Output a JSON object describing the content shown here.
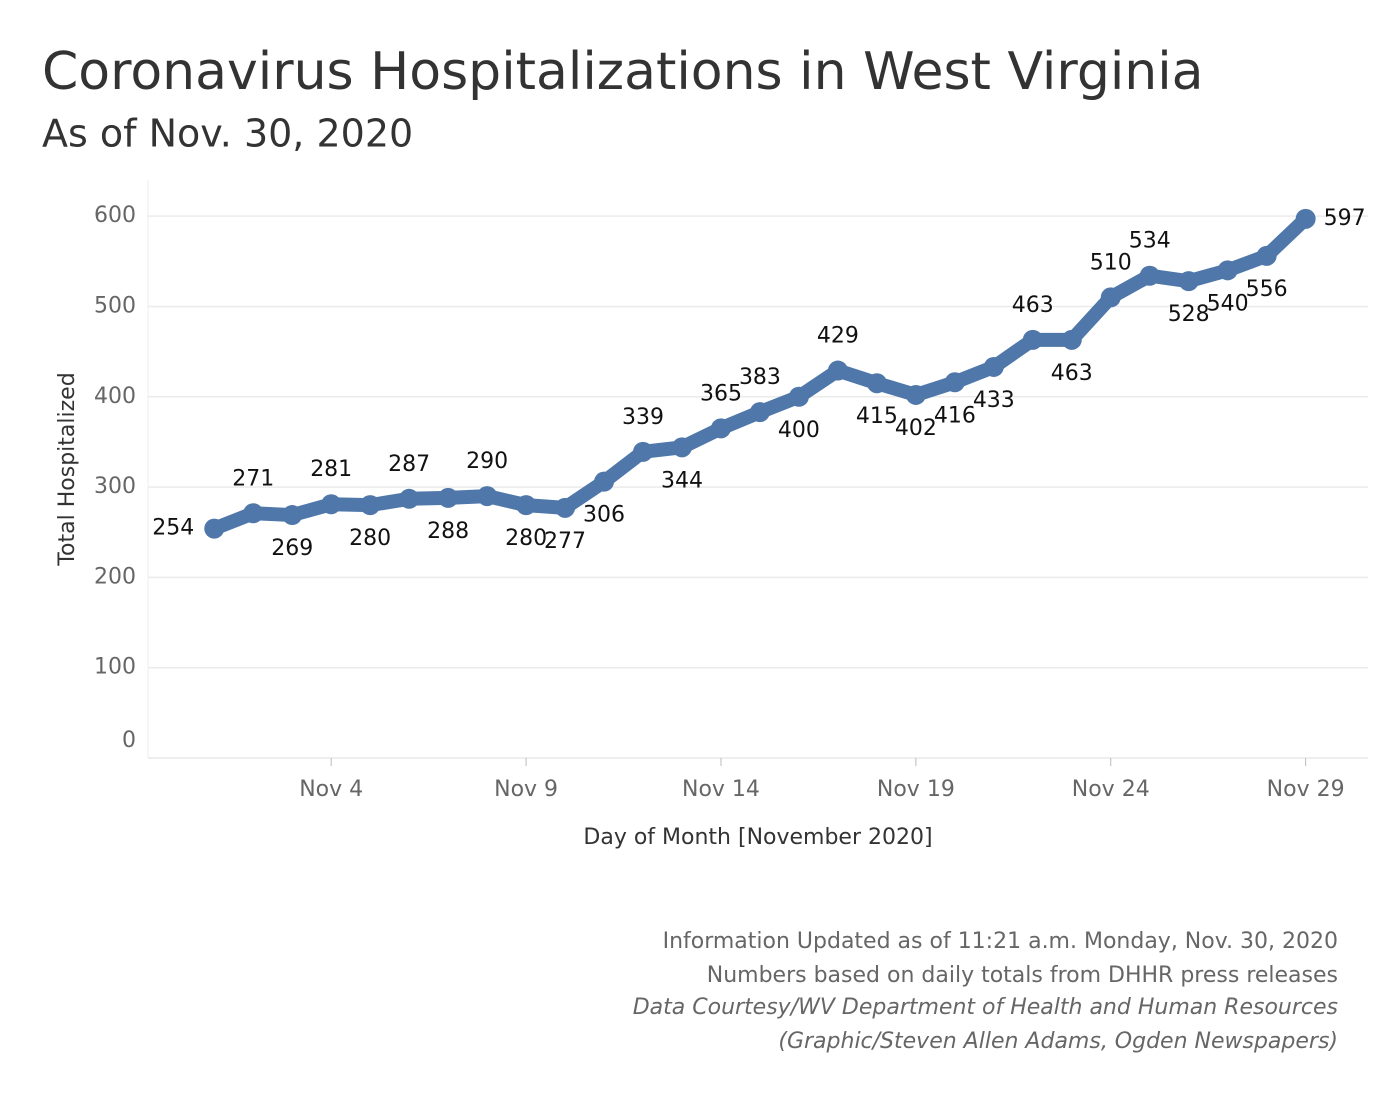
{
  "chart_data": {
    "type": "line",
    "title": "Coronavirus Hospitalizations in West Virginia",
    "subtitle": "As of Nov. 30, 2020",
    "x_label": "Day of Month [November 2020]",
    "y_label": "Total Hospitalized",
    "x": [
      1,
      2,
      3,
      4,
      5,
      6,
      7,
      8,
      9,
      10,
      11,
      12,
      13,
      14,
      15,
      16,
      17,
      18,
      19,
      20,
      21,
      22,
      23,
      24,
      25,
      26,
      27,
      28,
      29
    ],
    "series": [
      {
        "name": "Total Hospitalized",
        "color": "#4f77aa",
        "values": [
          254,
          271,
          269,
          281,
          280,
          287,
          288,
          290,
          280,
          277,
          306,
          339,
          344,
          365,
          383,
          400,
          429,
          415,
          402,
          416,
          433,
          463,
          463,
          510,
          534,
          528,
          540,
          556,
          597
        ]
      }
    ],
    "xlim": [
      -0.7,
      30.6
    ],
    "xticks": [
      {
        "value": 4,
        "label": "Nov 4"
      },
      {
        "value": 9,
        "label": "Nov 9"
      },
      {
        "value": 14,
        "label": "Nov 14"
      },
      {
        "value": 19,
        "label": "Nov 19"
      },
      {
        "value": 24,
        "label": "Nov 24"
      },
      {
        "value": 29,
        "label": "Nov 29"
      }
    ],
    "ylim": [
      0,
      640
    ],
    "yticks": [
      0,
      100,
      200,
      300,
      400,
      500,
      600
    ],
    "grid": true,
    "notes": [
      "Information Updated as of 11:21 a.m. Monday, Nov. 30, 2020",
      "Numbers based on daily totals from DHHR press releases",
      "Data Courtesy/WV Department of Health and Human Resources",
      "(Graphic/Steven Allen Adams, Ogden Newspapers)"
    ]
  }
}
